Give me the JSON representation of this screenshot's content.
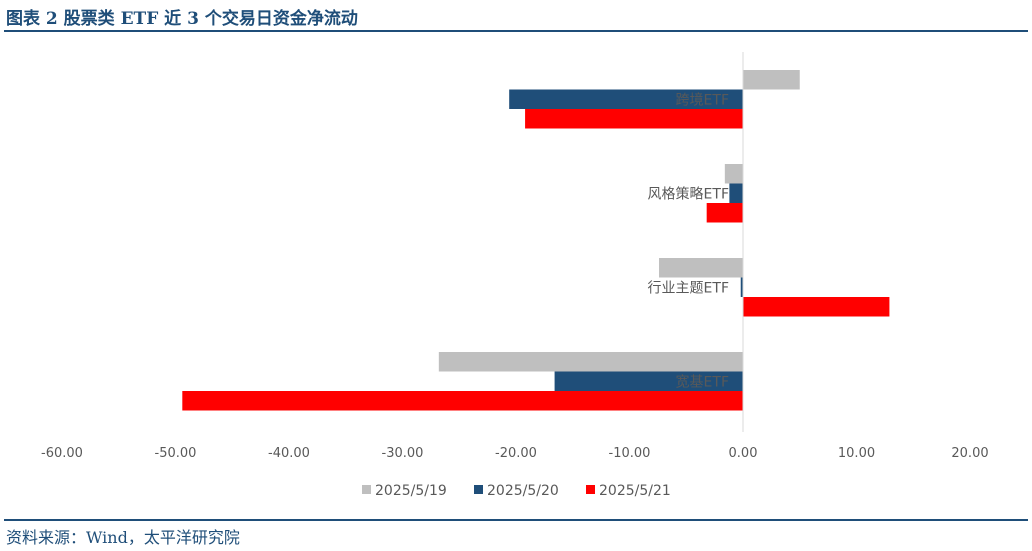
{
  "header": {
    "title": "图表 2 股票类 ETF 近 3 个交易日资金净流动"
  },
  "footer": {
    "source": "资料来源：Wind，太平洋研究院"
  },
  "chart_data": {
    "type": "bar",
    "orientation": "horizontal",
    "title": "图表 2 股票类 ETF 近 3 个交易日资金净流动",
    "categories": [
      "跨境ETF",
      "风格策略ETF",
      "行业主题ETF",
      "宽基ETF"
    ],
    "series": [
      {
        "name": "2025/5/19",
        "color": "#bfbfbf",
        "values": [
          5.0,
          -1.6,
          -7.4,
          -26.8
        ]
      },
      {
        "name": "2025/5/20",
        "color": "#1f4e79",
        "values": [
          -20.6,
          -1.2,
          -0.2,
          -16.6
        ]
      },
      {
        "name": "2025/5/21",
        "color": "#ff0000",
        "values": [
          -19.2,
          -3.2,
          12.9,
          -49.4
        ]
      }
    ],
    "xlim": [
      -60,
      20
    ],
    "xticks": [
      "-60.00",
      "-50.00",
      "-40.00",
      "-30.00",
      "-20.00",
      "-10.00",
      "0.00",
      "10.00",
      "20.00"
    ],
    "xtick_values": [
      -60,
      -50,
      -40,
      -30,
      -20,
      -10,
      0,
      10,
      20
    ],
    "legend_position": "bottom",
    "grid": false
  }
}
